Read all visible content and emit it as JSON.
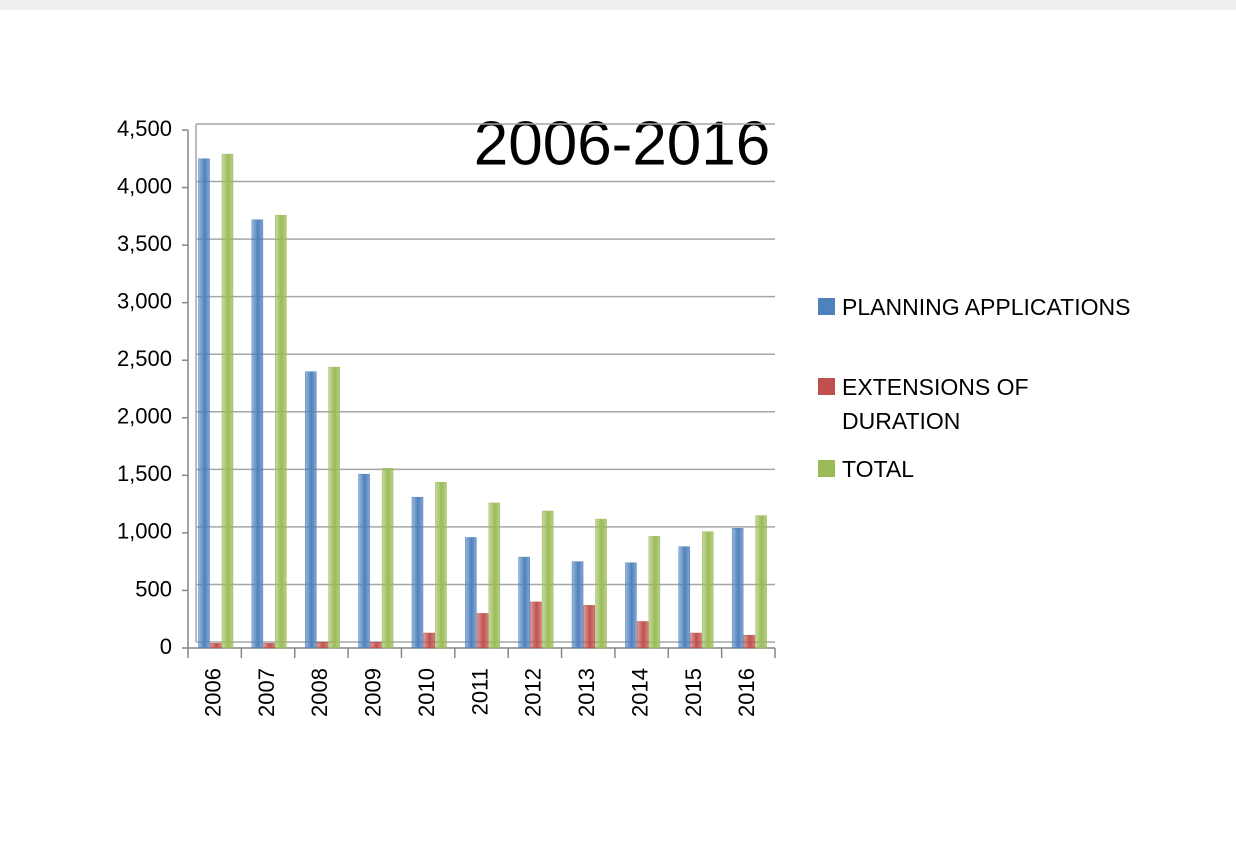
{
  "chart_data": {
    "type": "bar",
    "title": "2006-2016",
    "categories": [
      "2006",
      "2007",
      "2008",
      "2009",
      "2010",
      "2011",
      "2012",
      "2013",
      "2014",
      "2015",
      "2016"
    ],
    "series": [
      {
        "name": "PLANNING APPLICATIONS",
        "color": "#4f81bd",
        "values": [
          4250,
          3720,
          2400,
          1510,
          1310,
          960,
          790,
          750,
          740,
          880,
          1040
        ]
      },
      {
        "name": "EXTENSIONS OF DURATION",
        "color": "#c0504d",
        "values": [
          40,
          40,
          50,
          50,
          130,
          300,
          400,
          370,
          230,
          130,
          110
        ]
      },
      {
        "name": "TOTAL",
        "color": "#9bbb59",
        "values": [
          4290,
          3760,
          2440,
          1560,
          1440,
          1260,
          1190,
          1120,
          970,
          1010,
          1150
        ]
      }
    ],
    "ylim": [
      0,
      4500
    ],
    "yticks": [
      0,
      500,
      {
        "value": 1000,
        "label": "1,000"
      },
      {
        "value": 1500,
        "label": "1,500"
      },
      {
        "value": 2000,
        "label": "2,000"
      },
      {
        "value": 2500,
        "label": "2,500"
      },
      {
        "value": 3000,
        "label": "3,000"
      },
      {
        "value": 3500,
        "label": "3,500"
      },
      {
        "value": 4000,
        "label": "4,000"
      },
      {
        "value": 4500,
        "label": "4,500"
      }
    ],
    "grid": true,
    "legend": "right"
  }
}
